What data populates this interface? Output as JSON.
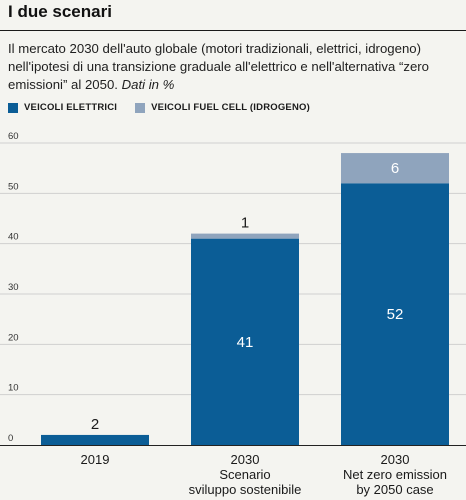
{
  "header": {
    "title": "I due scenari",
    "description": "Il mercato 2030 dell'auto globale (motori tradizionali, elettrici, idrogeno) nell'ipotesi di una transizione graduale all'elettrico e nell'alternativa “zero emissioni” al 2050.",
    "unit_note": "Dati in %"
  },
  "colors": {
    "electric": "#0b5d96",
    "fuelcell": "#8fa4bd",
    "grid": "#cfcfcf",
    "baseline": "#222222"
  },
  "chart_data": {
    "type": "bar",
    "stacked": true,
    "categories": [
      [
        "2019"
      ],
      [
        "2030",
        "Scenario",
        "sviluppo sostenibile"
      ],
      [
        "2030",
        "Net zero emission",
        "by 2050 case"
      ]
    ],
    "series": [
      {
        "name": "VEICOLI ELETTRICI",
        "values": [
          2,
          41,
          52
        ],
        "labels": [
          "2",
          "41",
          "52"
        ]
      },
      {
        "name": "VEICOLI FUEL CELL (IDROGENO)",
        "values": [
          0,
          1,
          6
        ],
        "labels": [
          "",
          "1",
          "6"
        ]
      }
    ],
    "ylim": [
      0,
      60
    ],
    "yticks": [
      0,
      10,
      20,
      30,
      40,
      50,
      60
    ],
    "grid": true,
    "legend_position": "top-left",
    "xlabel": "",
    "ylabel": ""
  }
}
